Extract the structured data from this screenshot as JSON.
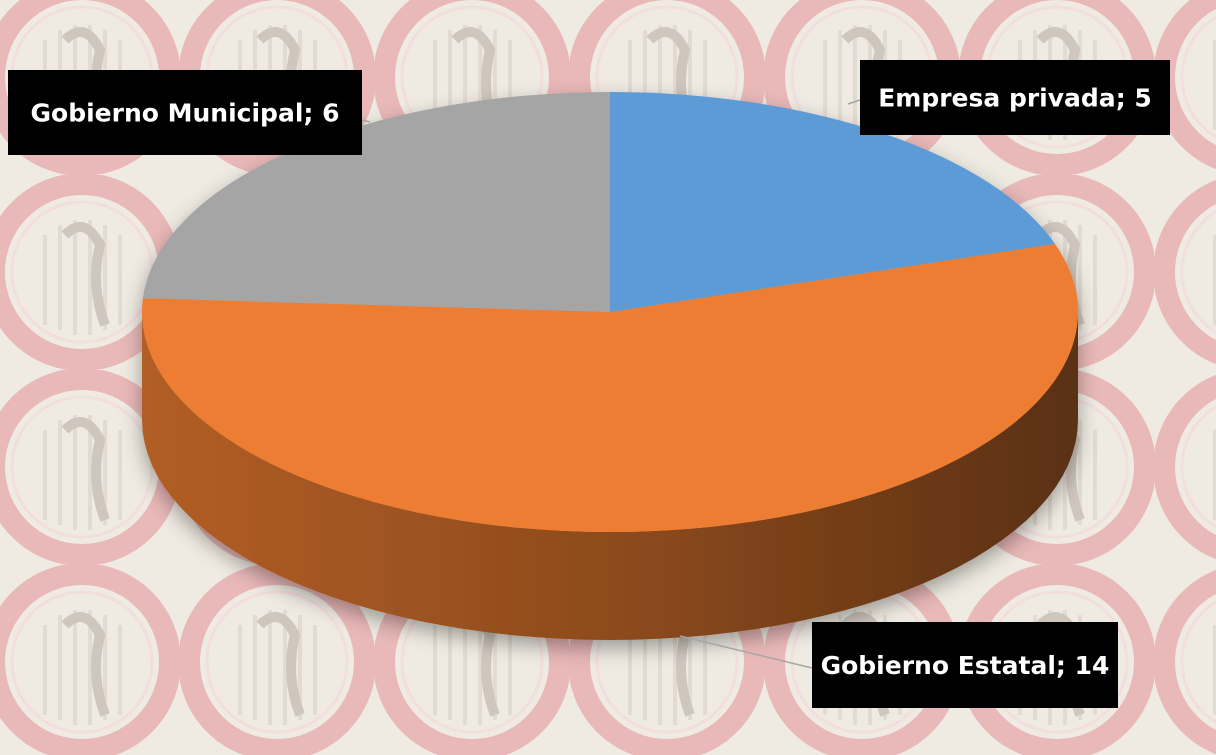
{
  "chart_data": {
    "type": "pie",
    "categories": [
      "Empresa privada",
      "Gobierno Estatal",
      "Gobierno Municipal"
    ],
    "values": [
      5,
      14,
      6
    ],
    "colors": [
      "#5b9bd5",
      "#ed7d31",
      "#a5a5a5"
    ],
    "label_separator": "; "
  }
}
